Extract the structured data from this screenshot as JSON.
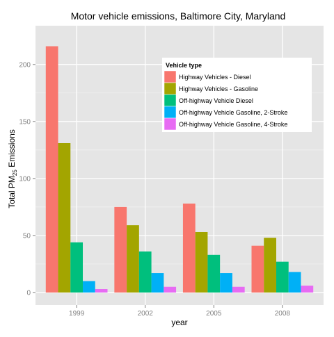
{
  "chart_data": {
    "type": "bar",
    "title": "Motor vehicle emissions, Baltimore City, Maryland",
    "xlabel": "year",
    "ylabel": {
      "main": "Total PM",
      "sub": "25",
      "tail": " Emissions"
    },
    "categories": [
      "1999",
      "2002",
      "2005",
      "2008"
    ],
    "ylim": [
      -11,
      234
    ],
    "yticks": [
      0,
      50,
      100,
      150,
      200
    ],
    "grid": true,
    "legend": {
      "title": "Vehicle type",
      "position": "top-right"
    },
    "series": [
      {
        "name": "Highway Vehicles - Diesel",
        "color": "#F8766D",
        "values": [
          216,
          75,
          78,
          41
        ]
      },
      {
        "name": "Highway Vehicles - Gasoline",
        "color": "#A3A500",
        "values": [
          131,
          59,
          53,
          48
        ]
      },
      {
        "name": "Off-highway Vehicle Diesel",
        "color": "#00BF7D",
        "values": [
          44,
          36,
          33,
          27
        ]
      },
      {
        "name": "Off-highway Vehicle Gasoline, 2-Stroke",
        "color": "#00B0F6",
        "values": [
          10,
          17,
          17,
          18
        ]
      },
      {
        "name": "Off-highway Vehicle Gasoline, 4-Stroke",
        "color": "#E76BF3",
        "values": [
          3,
          5,
          5,
          6
        ]
      }
    ]
  }
}
